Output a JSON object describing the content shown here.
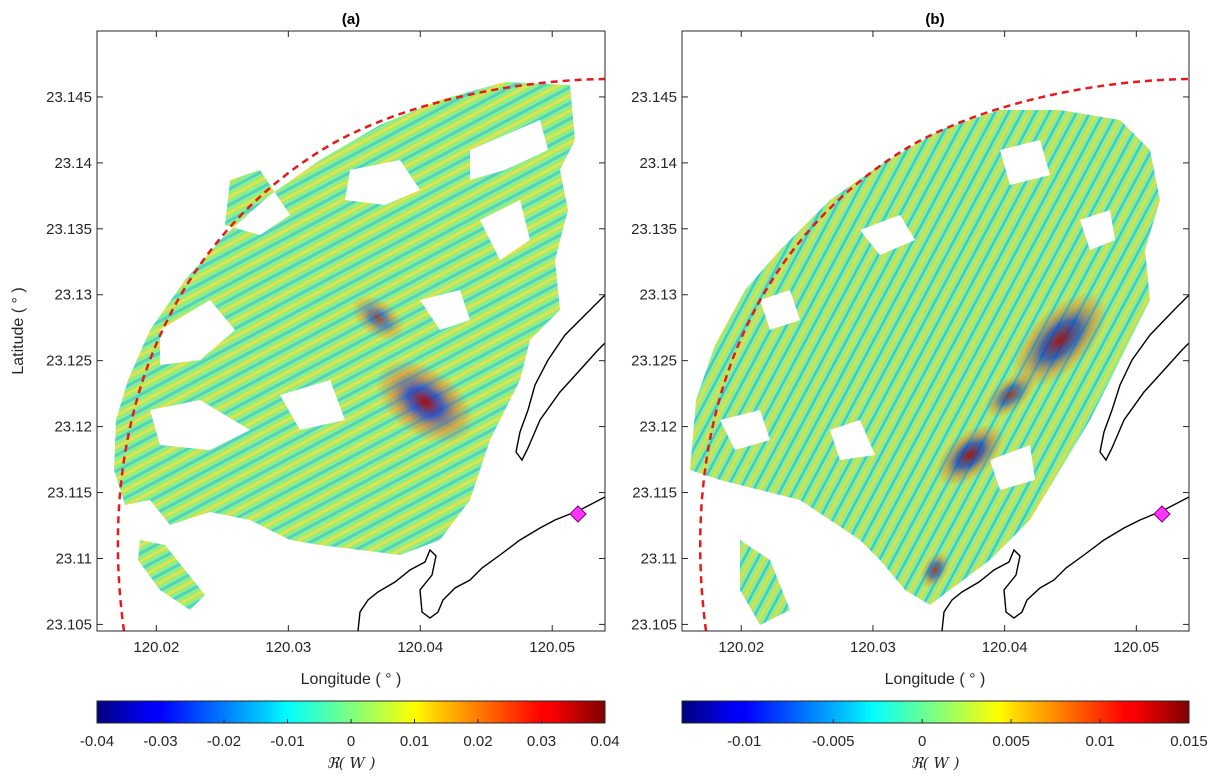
{
  "figure": {
    "panels": [
      {
        "title": "(a)",
        "xlabel": "Longitude ( ° )",
        "ylabel": "Latitude ( ° )",
        "xticks": [
          "120.02",
          "120.03",
          "120.04",
          "120.05"
        ],
        "yticks": [
          "23.105",
          "23.11",
          "23.115",
          "23.12",
          "23.125",
          "23.13",
          "23.135",
          "23.14",
          "23.145"
        ],
        "colorbar_ticks": [
          "-0.04",
          "-0.03",
          "-0.02",
          "-0.01",
          "0",
          "0.01",
          "0.02",
          "0.03",
          "0.04"
        ],
        "colorbar_label": "ℜ( W )"
      },
      {
        "title": "(b)",
        "xlabel": "Longitude ( ° )",
        "ylabel": "",
        "xticks": [
          "120.02",
          "120.03",
          "120.04",
          "120.05"
        ],
        "yticks": [
          "23.105",
          "23.11",
          "23.115",
          "23.12",
          "23.125",
          "23.13",
          "23.135",
          "23.14",
          "23.145"
        ],
        "colorbar_ticks": [
          "-0.01",
          "-0.005",
          "0",
          "0.005",
          "0.01",
          "0.015"
        ],
        "colorbar_label": "ℜ( W )"
      }
    ]
  },
  "chart_data": [
    {
      "type": "heatmap",
      "title": "(a)",
      "xlabel": "Longitude ( ° )",
      "ylabel": "Latitude ( ° )",
      "xlim": [
        120.0155,
        120.054
      ],
      "ylim": [
        23.1045,
        23.15
      ],
      "xticks": [
        120.02,
        120.03,
        120.04,
        120.05
      ],
      "yticks": [
        23.105,
        23.11,
        23.115,
        23.12,
        23.125,
        23.13,
        23.135,
        23.14,
        23.145
      ],
      "colormap": "jet",
      "clim": [
        -0.04,
        0.04
      ],
      "colorbar_ticks": [
        -0.04,
        -0.03,
        -0.02,
        -0.01,
        0,
        0.01,
        0.02,
        0.03,
        0.04
      ],
      "colorbar_label": "ℜ( W )",
      "grid": false,
      "radar_range_arc": {
        "color": "#e41a1c",
        "style": "dashed"
      },
      "radar_site_marker": {
        "lon": 120.052,
        "lat": 23.1134,
        "color": "#ff00ff",
        "shape": "diamond"
      },
      "peak_region": {
        "lon": 120.0405,
        "lat": 23.1215
      }
    },
    {
      "type": "heatmap",
      "title": "(b)",
      "xlabel": "Longitude ( ° )",
      "ylabel": "",
      "xlim": [
        120.0155,
        120.054
      ],
      "ylim": [
        23.1045,
        23.15
      ],
      "xticks": [
        120.02,
        120.03,
        120.04,
        120.05
      ],
      "yticks": [
        23.105,
        23.11,
        23.115,
        23.12,
        23.125,
        23.13,
        23.135,
        23.14,
        23.145
      ],
      "colormap": "jet",
      "clim": [
        -0.0135,
        0.015
      ],
      "colorbar_ticks": [
        -0.01,
        -0.005,
        0,
        0.005,
        0.01,
        0.015
      ],
      "colorbar_label": "ℜ( W )",
      "grid": false,
      "radar_range_arc": {
        "color": "#e41a1c",
        "style": "dashed"
      },
      "radar_site_marker": {
        "lon": 120.052,
        "lat": 23.1134,
        "color": "#ff00ff",
        "shape": "diamond"
      },
      "peak_region": {
        "lon": 120.044,
        "lat": 23.124
      }
    }
  ]
}
